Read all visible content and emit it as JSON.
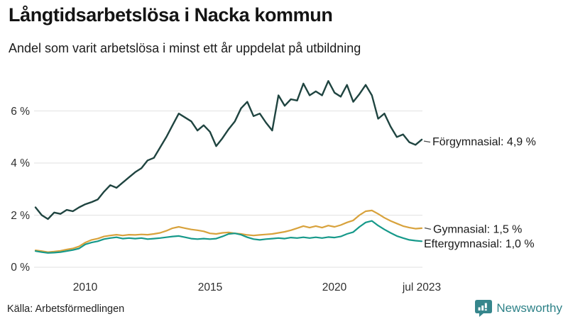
{
  "header": {
    "title": "Långtidsarbetslösa i Nacka kommun",
    "subtitle": "Andel som varit arbetslösa i minst ett år uppdelat på utbildning"
  },
  "footer": {
    "source": "Källa: Arbetsförmedlingen",
    "brand_name": "Newsworthy",
    "brand_color": "#2e8288"
  },
  "icons": {
    "brand_logo": "bar-chart-speech-bubble-icon"
  },
  "colors": {
    "grid": "#e2e2e2",
    "text": "#1a1a1a"
  },
  "chart_data": {
    "type": "line",
    "title": "Långtidsarbetslösa i Nacka kommun",
    "subtitle": "Andel som varit arbetslösa i minst ett år uppdelat på utbildning",
    "xlabel": "",
    "ylabel": "",
    "x_unit": "year (monthly series)",
    "y_unit": "%",
    "x_start": 2008.0,
    "x_step": 0.25,
    "x_end": 2023.5,
    "ylim": [
      0,
      7.5
    ],
    "grid": true,
    "legend_position": "right-end-labels",
    "y_ticks": [
      {
        "value": 6,
        "label": "6 %"
      },
      {
        "value": 4,
        "label": "4 %"
      },
      {
        "value": 2,
        "label": "2 %"
      },
      {
        "value": 0,
        "label": "0 %"
      }
    ],
    "x_ticks": [
      {
        "value": 2010,
        "label": "2010"
      },
      {
        "value": 2015,
        "label": "2015"
      },
      {
        "value": 2020,
        "label": "2020"
      },
      {
        "value": 2023.5,
        "label": "jul 2023"
      }
    ],
    "series": [
      {
        "name": "Förgymnasial",
        "label": "Förgymnasial: 4,9 %",
        "end_value": 4.9,
        "color": "#1f4440",
        "values": [
          2.3,
          2.0,
          1.85,
          2.1,
          2.05,
          2.2,
          2.15,
          2.3,
          2.42,
          2.5,
          2.6,
          2.9,
          3.15,
          3.05,
          3.25,
          3.45,
          3.65,
          3.8,
          4.1,
          4.2,
          4.6,
          5.0,
          5.45,
          5.9,
          5.75,
          5.6,
          5.25,
          5.45,
          5.2,
          4.65,
          4.95,
          5.3,
          5.6,
          6.1,
          6.35,
          5.8,
          5.9,
          5.55,
          5.25,
          6.6,
          6.2,
          6.45,
          6.4,
          7.05,
          6.6,
          6.75,
          6.6,
          7.15,
          6.7,
          6.55,
          7.0,
          6.35,
          6.65,
          7.0,
          6.6,
          5.7,
          5.9,
          5.4,
          5.0,
          5.1,
          4.8,
          4.7,
          4.9
        ]
      },
      {
        "name": "Gymnasial",
        "label": "Gymnasial: 1,5 %",
        "end_value": 1.5,
        "color": "#d8a23c",
        "values": [
          0.65,
          0.62,
          0.58,
          0.6,
          0.63,
          0.68,
          0.72,
          0.8,
          0.95,
          1.05,
          1.1,
          1.18,
          1.22,
          1.25,
          1.22,
          1.25,
          1.24,
          1.26,
          1.25,
          1.28,
          1.32,
          1.4,
          1.5,
          1.55,
          1.5,
          1.45,
          1.42,
          1.38,
          1.3,
          1.28,
          1.32,
          1.34,
          1.3,
          1.28,
          1.24,
          1.22,
          1.24,
          1.26,
          1.28,
          1.32,
          1.36,
          1.42,
          1.5,
          1.58,
          1.52,
          1.58,
          1.52,
          1.6,
          1.55,
          1.62,
          1.72,
          1.8,
          2.0,
          2.15,
          2.18,
          2.05,
          1.9,
          1.78,
          1.68,
          1.58,
          1.52,
          1.48,
          1.5
        ]
      },
      {
        "name": "Eftergymnasial",
        "label": "Eftergymnasial: 1,0 %",
        "end_value": 1.0,
        "color": "#16998a",
        "values": [
          0.62,
          0.58,
          0.55,
          0.56,
          0.58,
          0.62,
          0.66,
          0.72,
          0.88,
          0.95,
          1.0,
          1.08,
          1.12,
          1.15,
          1.1,
          1.12,
          1.1,
          1.12,
          1.08,
          1.1,
          1.12,
          1.15,
          1.18,
          1.2,
          1.15,
          1.1,
          1.08,
          1.1,
          1.08,
          1.1,
          1.18,
          1.28,
          1.3,
          1.25,
          1.15,
          1.08,
          1.05,
          1.08,
          1.1,
          1.12,
          1.1,
          1.14,
          1.12,
          1.15,
          1.12,
          1.15,
          1.12,
          1.16,
          1.14,
          1.18,
          1.28,
          1.35,
          1.55,
          1.72,
          1.78,
          1.6,
          1.45,
          1.32,
          1.2,
          1.12,
          1.05,
          1.02,
          1.0
        ]
      }
    ]
  }
}
